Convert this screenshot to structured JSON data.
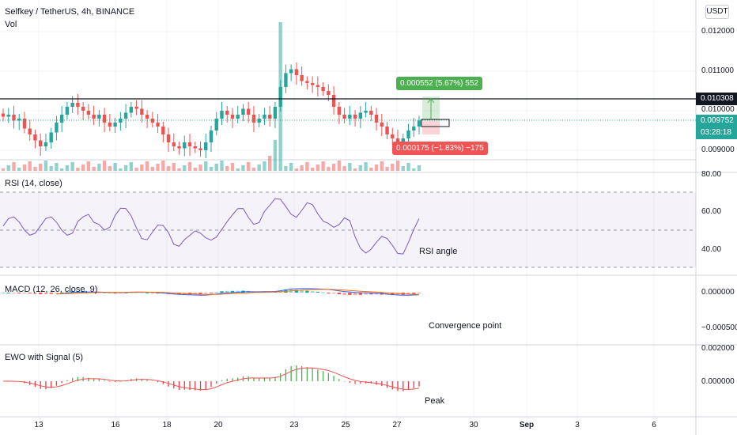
{
  "header": {
    "symbol_line": "Selfkey / TetherUS, 4h, BINANCE",
    "vol_label": "Vol",
    "currency": "USDT"
  },
  "price_axis": {
    "ticks": [
      "0.012000",
      "0.011000",
      "0.010000",
      "0.009000"
    ],
    "resistance_label": "0.010308",
    "last_price_label": "0.009752",
    "countdown_label": "03:28:18"
  },
  "position_tool": {
    "profit_label": "0.000552 (5.67%) 552",
    "loss_label": "0.000175 (−1.83%) −175"
  },
  "rsi_pane": {
    "title": "RSI (14, close)",
    "ticks": [
      "80.00",
      "60.00",
      "40.00"
    ],
    "annotation": "RSI angle"
  },
  "macd_pane": {
    "title": "MACD (12, 26, close, 9)",
    "ticks": [
      "0.000000",
      "−0.000500"
    ],
    "annotation": "Convergence point"
  },
  "ewo_pane": {
    "title": "EWO with Signal (5)",
    "ticks": [
      "0.002000",
      "0.000000"
    ],
    "annotation": "Peak"
  },
  "time_axis": {
    "labels": [
      "13",
      "16",
      "18",
      "20",
      "23",
      "25",
      "27",
      "30",
      "Sep",
      "3",
      "6"
    ]
  },
  "colors": {
    "up": "#26a69a",
    "down": "#ef5350",
    "rsi_line": "#7e57c2",
    "macd_line": "#2962ff",
    "signal_line": "#ff6d00",
    "profit": "#4caf50",
    "loss": "#f23645",
    "price_tag": "#26a69a"
  },
  "chart_data": {
    "type": "candlestick",
    "series": [
      {
        "name": "price",
        "values": [
          0.00985,
          0.0099,
          0.00975,
          0.0098,
          0.00955,
          0.0094,
          0.00925,
          0.0091,
          0.0092,
          0.00945,
          0.0097,
          0.0099,
          0.0101,
          0.0102,
          0.0101,
          0.01,
          0.0099,
          0.0098,
          0.0099,
          0.0097,
          0.0096,
          0.0097,
          0.0098,
          0.00995,
          0.0101,
          0.01005,
          0.0099,
          0.0098,
          0.0097,
          0.0096,
          0.0094,
          0.0092,
          0.0091,
          0.00905,
          0.0092,
          0.0091,
          0.00905,
          0.009,
          0.0092,
          0.0095,
          0.0098,
          0.01,
          0.0099,
          0.0098,
          0.0099,
          0.01005,
          0.0099,
          0.0097,
          0.0098,
          0.0099,
          0.0098,
          0.0101,
          0.0106,
          0.01095,
          0.01105,
          0.0109,
          0.01075,
          0.0107,
          0.01065,
          0.0106,
          0.0105,
          0.0104,
          0.0101,
          0.0099,
          0.0098,
          0.0099,
          0.0098,
          0.00995,
          0.01,
          0.0099,
          0.0097,
          0.0096,
          0.0094,
          0.0093,
          0.0092,
          0.0093,
          0.0095,
          0.0096,
          0.009752
        ]
      }
    ]
  }
}
